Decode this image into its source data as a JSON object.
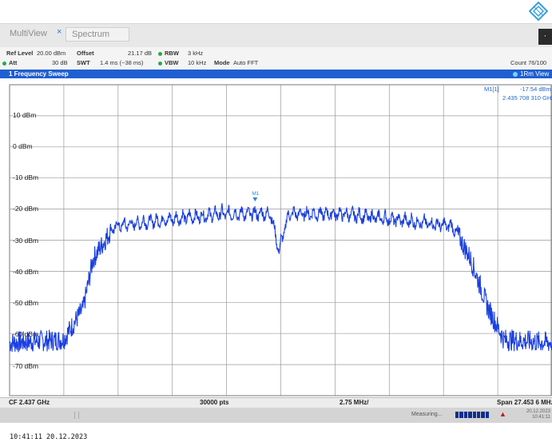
{
  "window": {
    "logo": "rohde-schwarz-diamond-icon",
    "tabs": {
      "multiview": "MultiView",
      "spectrum": "Spectrum"
    },
    "tab_close_glyph": "×",
    "side_button": "·"
  },
  "params": {
    "ref_level_label": "Ref Level",
    "ref_level_value": "20.00 dBm",
    "offset_label": "Offset",
    "offset_value": "21.17 dB",
    "rbw_label": "RBW",
    "rbw_value": "3 kHz",
    "att_label": "Att",
    "att_value": "30 dB",
    "swt_label": "SWT",
    "swt_value": "1.4 ms (~38 ms)",
    "vbw_label": "VBW",
    "vbw_value": "10 kHz",
    "mode_label": "Mode",
    "mode_value": "Auto FFT",
    "count": "Count 76/100"
  },
  "sweep": {
    "title": "1 Frequency Sweep",
    "trace_label": "1Rm View"
  },
  "marker": {
    "name": "M1[1]",
    "level": "-17.54 dBm",
    "freq": "2.435 708 310 GHz",
    "plot_label": "M1"
  },
  "y_axis": {
    "labels": [
      "10 dBm",
      "0 dBm",
      "-10 dBm",
      "-20 dBm",
      "-30 dBm",
      "-40 dBm",
      "-50 dBm",
      "-60 dBm",
      "-70 dBm"
    ]
  },
  "status": {
    "cf": "CF 2.437 GHz",
    "pts": "30000 pts",
    "div": "2.75 MHz/",
    "span": "Span 27.453 6 MHz"
  },
  "bottom": {
    "measuring": "Measuring...",
    "warn_icon": "warning-icon",
    "date_small": "20.12.2023",
    "time_small": "10:41:11"
  },
  "caption": "10:41:11  20.12.2023",
  "colors": {
    "trace": "#1a3fe0",
    "sweep_bar": "#1f5fd1",
    "grid": "#9a9a9a"
  },
  "chart_data": {
    "type": "line",
    "x_label_left": "CF 2.437 GHz",
    "x_center_ghz": 2.437,
    "x_span_mhz": 27.4536,
    "x_div_mhz": 2.75,
    "ylim": [
      -80,
      20
    ],
    "y_ticks": [
      10,
      0,
      -10,
      -20,
      -30,
      -40,
      -50,
      -60,
      -70
    ],
    "grid": true,
    "series": [
      {
        "x_mhz": [
          -13.73,
          -11.0,
          -10.0,
          -9.5,
          -8.4,
          -6.0,
          -3.0,
          -0.5,
          -0.1,
          0.4,
          3.0,
          6.0,
          8.7,
          9.6,
          10.5,
          11.3,
          13.73
        ],
        "y_dbm": [
          -63,
          -62,
          -52,
          -36,
          -25,
          -23,
          -21,
          -21,
          -33,
          -21,
          -21,
          -23,
          -25,
          -36,
          -52,
          -62,
          -63
        ]
      }
    ],
    "marker": {
      "name": "M1",
      "x_mhz": -1.3,
      "y_dbm": -17.54
    }
  }
}
